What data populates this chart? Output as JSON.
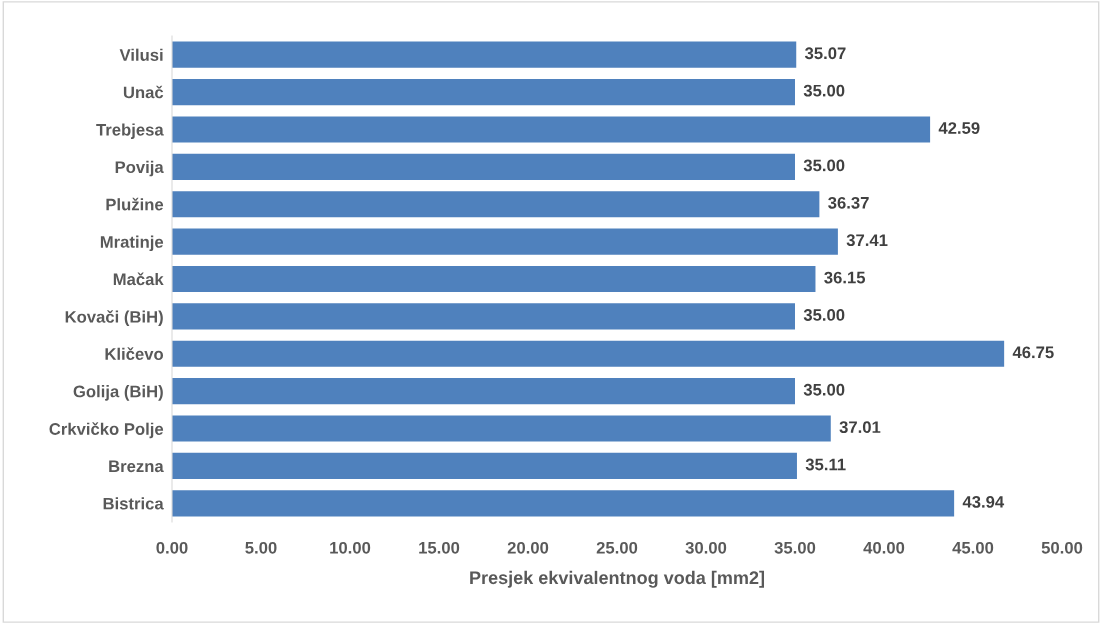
{
  "chart_data": {
    "type": "bar",
    "orientation": "horizontal",
    "xlabel": "Presjek ekvivalentnog voda [mm2]",
    "categories": [
      "Vilusi",
      "Unač",
      "Trebjesa",
      "Povija",
      "Plužine",
      "Mratinje",
      "Mačak",
      "Kovači (BiH)",
      "Kličevo",
      "Golija (BiH)",
      "Crkvičko Polje",
      "Brezna",
      "Bistrica"
    ],
    "values": [
      35.07,
      35.0,
      42.59,
      35.0,
      36.37,
      37.41,
      36.15,
      35.0,
      46.75,
      35.0,
      37.01,
      35.11,
      43.94
    ],
    "value_labels": [
      "35.07",
      "35.00",
      "42.59",
      "35.00",
      "36.37",
      "37.41",
      "36.15",
      "35.00",
      "46.75",
      "35.00",
      "37.01",
      "35.11",
      "43.94"
    ],
    "color": "#4f81bd",
    "xlim": [
      0,
      50
    ],
    "xticks": [
      {
        "value": 0,
        "label": "0.00"
      },
      {
        "value": 5,
        "label": "5.00"
      },
      {
        "value": 10,
        "label": "10.00"
      },
      {
        "value": 15,
        "label": "15.00"
      },
      {
        "value": 20,
        "label": "20.00"
      },
      {
        "value": 25,
        "label": "25.00"
      },
      {
        "value": 30,
        "label": "30.00"
      },
      {
        "value": 35,
        "label": "35.00"
      },
      {
        "value": 40,
        "label": "40.00"
      },
      {
        "value": 45,
        "label": "45.00"
      },
      {
        "value": 50,
        "label": "50.00"
      }
    ],
    "grid": false,
    "legend": false
  }
}
